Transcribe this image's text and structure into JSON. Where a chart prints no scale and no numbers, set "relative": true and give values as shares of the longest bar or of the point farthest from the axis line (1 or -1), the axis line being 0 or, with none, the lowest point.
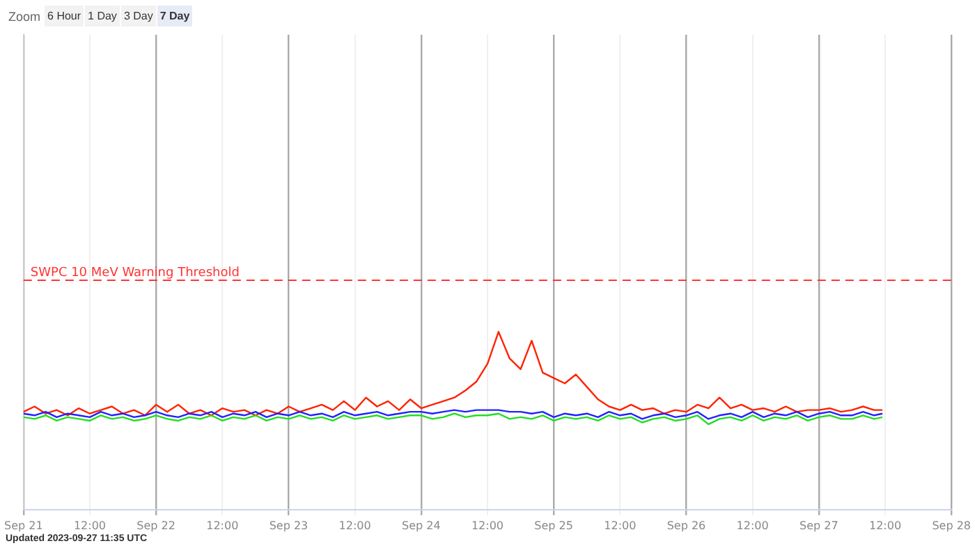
{
  "chart_data": {
    "type": "line",
    "relative": true,
    "grid": "x",
    "legend": false,
    "marker": "none",
    "line_style": "solid",
    "annotations": [
      "Zoom",
      "6 Hour",
      "1 Day",
      "3 Day",
      "7 Day",
      "Updated 2023-09-27 11:35 UTC"
    ],
    "xlim": [
      "2023-09-21T00:00",
      "2023-09-28T00:00"
    ],
    "xticks": [
      {
        "value": "2023-09-21T00:00",
        "label": "Sep 21"
      },
      {
        "value": "2023-09-21T12:00",
        "label": "12:00"
      },
      {
        "value": "2023-09-22T00:00",
        "label": "Sep 22"
      },
      {
        "value": "2023-09-22T12:00",
        "label": "12:00"
      },
      {
        "value": "2023-09-23T00:00",
        "label": "Sep 23"
      },
      {
        "value": "2023-09-23T12:00",
        "label": "12:00"
      },
      {
        "value": "2023-09-24T00:00",
        "label": "Sep 24"
      },
      {
        "value": "2023-09-24T12:00",
        "label": "12:00"
      },
      {
        "value": "2023-09-25T00:00",
        "label": "Sep 25"
      },
      {
        "value": "2023-09-25T12:00",
        "label": "12:00"
      },
      {
        "value": "2023-09-26T00:00",
        "label": "Sep 26"
      },
      {
        "value": "2023-09-26T12:00",
        "label": "12:00"
      },
      {
        "value": "2023-09-27T00:00",
        "label": "Sep 27"
      },
      {
        "value": "2023-09-27T12:00",
        "label": "12:00"
      },
      {
        "value": "2023-09-28T00:00",
        "label": "Sep 28"
      }
    ],
    "x": [
      "2023-09-21T00:00",
      "2023-09-21T02:00",
      "2023-09-21T04:00",
      "2023-09-21T06:00",
      "2023-09-21T08:00",
      "2023-09-21T10:00",
      "2023-09-21T12:00",
      "2023-09-21T14:00",
      "2023-09-21T16:00",
      "2023-09-21T18:00",
      "2023-09-21T20:00",
      "2023-09-21T22:00",
      "2023-09-22T00:00",
      "2023-09-22T02:00",
      "2023-09-22T04:00",
      "2023-09-22T06:00",
      "2023-09-22T08:00",
      "2023-09-22T10:00",
      "2023-09-22T12:00",
      "2023-09-22T14:00",
      "2023-09-22T16:00",
      "2023-09-22T18:00",
      "2023-09-22T20:00",
      "2023-09-22T22:00",
      "2023-09-23T00:00",
      "2023-09-23T02:00",
      "2023-09-23T04:00",
      "2023-09-23T06:00",
      "2023-09-23T08:00",
      "2023-09-23T10:00",
      "2023-09-23T12:00",
      "2023-09-23T14:00",
      "2023-09-23T16:00",
      "2023-09-23T18:00",
      "2023-09-23T20:00",
      "2023-09-23T22:00",
      "2023-09-24T00:00",
      "2023-09-24T02:00",
      "2023-09-24T04:00",
      "2023-09-24T06:00",
      "2023-09-24T08:00",
      "2023-09-24T10:00",
      "2023-09-24T12:00",
      "2023-09-24T14:00",
      "2023-09-24T16:00",
      "2023-09-24T18:00",
      "2023-09-24T20:00",
      "2023-09-24T22:00",
      "2023-09-25T00:00",
      "2023-09-25T02:00",
      "2023-09-25T04:00",
      "2023-09-25T06:00",
      "2023-09-25T08:00",
      "2023-09-25T10:00",
      "2023-09-25T12:00",
      "2023-09-25T14:00",
      "2023-09-25T16:00",
      "2023-09-25T18:00",
      "2023-09-25T20:00",
      "2023-09-25T22:00",
      "2023-09-26T00:00",
      "2023-09-26T02:00",
      "2023-09-26T04:00",
      "2023-09-26T06:00",
      "2023-09-26T08:00",
      "2023-09-26T10:00",
      "2023-09-26T12:00",
      "2023-09-26T14:00",
      "2023-09-26T16:00",
      "2023-09-26T18:00",
      "2023-09-26T20:00",
      "2023-09-26T22:00",
      "2023-09-27T00:00",
      "2023-09-27T02:00",
      "2023-09-27T04:00",
      "2023-09-27T06:00",
      "2023-09-27T08:00",
      "2023-09-27T10:00",
      "2023-09-27T11:30"
    ],
    "ref_lines": [
      {
        "axis": "y",
        "value": 1.29,
        "label": "SWPC 10 MeV Warning Threshold",
        "color": "#ff3333",
        "line_style": "dashed"
      }
    ],
    "series": [
      {
        "color": "#ff2200",
        "values": [
          0.55,
          0.58,
          0.54,
          0.56,
          0.53,
          0.57,
          0.54,
          0.56,
          0.58,
          0.54,
          0.56,
          0.53,
          0.59,
          0.55,
          0.59,
          0.54,
          0.56,
          0.53,
          0.57,
          0.55,
          0.56,
          0.53,
          0.56,
          0.54,
          0.58,
          0.55,
          0.57,
          0.59,
          0.56,
          0.61,
          0.56,
          0.63,
          0.58,
          0.61,
          0.56,
          0.62,
          0.57,
          0.59,
          0.61,
          0.63,
          0.67,
          0.72,
          0.82,
          1.0,
          0.85,
          0.79,
          0.95,
          0.77,
          0.74,
          0.71,
          0.76,
          0.69,
          0.62,
          0.58,
          0.56,
          0.59,
          0.56,
          0.57,
          0.54,
          0.56,
          0.55,
          0.59,
          0.57,
          0.63,
          0.57,
          0.59,
          0.56,
          0.57,
          0.55,
          0.58,
          0.55,
          0.56,
          0.56,
          0.57,
          0.55,
          0.56,
          0.58,
          0.56,
          0.56
        ]
      },
      {
        "color": "#2222ff",
        "values": [
          0.54,
          0.53,
          0.55,
          0.52,
          0.54,
          0.53,
          0.52,
          0.55,
          0.53,
          0.54,
          0.52,
          0.53,
          0.55,
          0.53,
          0.52,
          0.54,
          0.53,
          0.55,
          0.52,
          0.54,
          0.53,
          0.55,
          0.52,
          0.54,
          0.53,
          0.55,
          0.53,
          0.54,
          0.52,
          0.55,
          0.53,
          0.54,
          0.55,
          0.53,
          0.54,
          0.55,
          0.55,
          0.54,
          0.55,
          0.56,
          0.55,
          0.56,
          0.56,
          0.56,
          0.55,
          0.55,
          0.54,
          0.55,
          0.52,
          0.54,
          0.53,
          0.54,
          0.52,
          0.55,
          0.53,
          0.54,
          0.51,
          0.53,
          0.54,
          0.52,
          0.53,
          0.55,
          0.51,
          0.53,
          0.54,
          0.52,
          0.55,
          0.52,
          0.54,
          0.53,
          0.55,
          0.52,
          0.54,
          0.55,
          0.53,
          0.53,
          0.55,
          0.53,
          0.54
        ]
      },
      {
        "color": "#22dd22",
        "values": [
          0.52,
          0.51,
          0.53,
          0.5,
          0.52,
          0.51,
          0.5,
          0.53,
          0.51,
          0.52,
          0.5,
          0.51,
          0.53,
          0.51,
          0.5,
          0.52,
          0.51,
          0.53,
          0.5,
          0.52,
          0.51,
          0.53,
          0.5,
          0.52,
          0.51,
          0.53,
          0.51,
          0.52,
          0.5,
          0.53,
          0.51,
          0.52,
          0.53,
          0.51,
          0.52,
          0.53,
          0.53,
          0.51,
          0.52,
          0.54,
          0.52,
          0.53,
          0.53,
          0.54,
          0.51,
          0.52,
          0.51,
          0.53,
          0.5,
          0.52,
          0.51,
          0.52,
          0.5,
          0.53,
          0.51,
          0.52,
          0.49,
          0.51,
          0.52,
          0.5,
          0.51,
          0.53,
          0.48,
          0.51,
          0.52,
          0.5,
          0.53,
          0.5,
          0.52,
          0.51,
          0.53,
          0.5,
          0.52,
          0.53,
          0.51,
          0.51,
          0.53,
          0.51,
          0.52
        ]
      }
    ]
  }
}
